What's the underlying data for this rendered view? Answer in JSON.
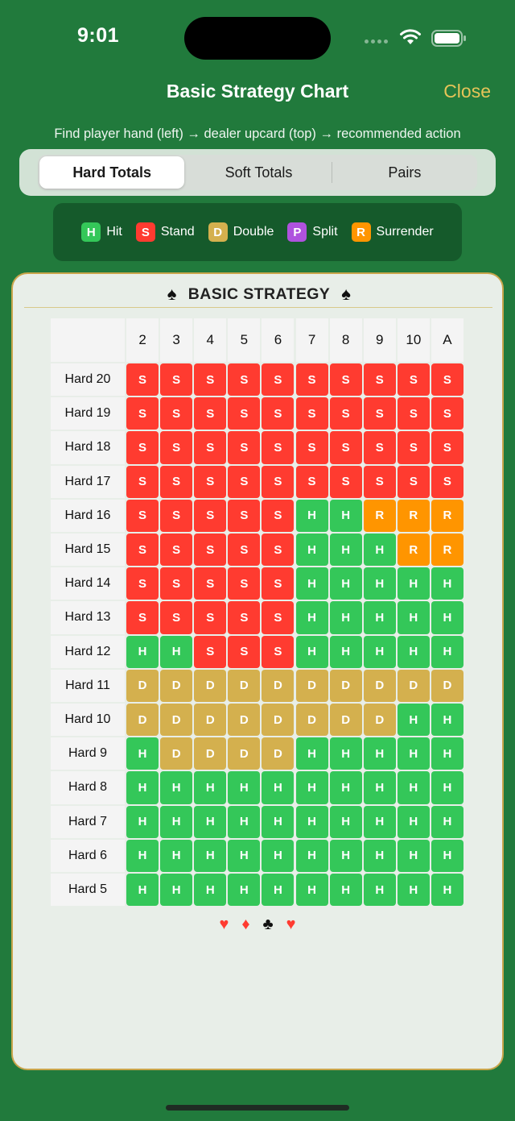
{
  "status_bar": {
    "time": "9:01"
  },
  "nav": {
    "title": "Basic Strategy Chart",
    "close_label": "Close",
    "instructions": "Find player hand (left) → dealer upcard (top) → recommended action"
  },
  "tabs": [
    {
      "label": "Hard Totals",
      "active": true
    },
    {
      "label": "Soft Totals",
      "active": false
    },
    {
      "label": "Pairs",
      "active": false
    }
  ],
  "legend": [
    {
      "code": "H",
      "label": "Hit",
      "color": "#34c759"
    },
    {
      "code": "S",
      "label": "Stand",
      "color": "#ff3b30"
    },
    {
      "code": "D",
      "label": "Double",
      "color": "#d4b04e"
    },
    {
      "code": "P",
      "label": "Split",
      "color": "#af52de"
    },
    {
      "code": "R",
      "label": "Surrender",
      "color": "#ff9500"
    }
  ],
  "card": {
    "title": "BASIC STRATEGY",
    "title_suit_icon": "spade-icon",
    "footer_suits": [
      {
        "glyph": "♥",
        "color": "#ff3b30",
        "icon": "heart-icon"
      },
      {
        "glyph": "♦",
        "color": "#ff3b30",
        "icon": "diamond-icon"
      },
      {
        "glyph": "♣",
        "color": "#111111",
        "icon": "club-icon"
      },
      {
        "glyph": "♥",
        "color": "#ff3b30",
        "icon": "heart-icon"
      }
    ]
  },
  "table": {
    "dealer_upcards": [
      "2",
      "3",
      "4",
      "5",
      "6",
      "7",
      "8",
      "9",
      "10",
      "A"
    ],
    "rows": [
      {
        "label": "Hard 20",
        "actions": [
          "S",
          "S",
          "S",
          "S",
          "S",
          "S",
          "S",
          "S",
          "S",
          "S"
        ]
      },
      {
        "label": "Hard 19",
        "actions": [
          "S",
          "S",
          "S",
          "S",
          "S",
          "S",
          "S",
          "S",
          "S",
          "S"
        ]
      },
      {
        "label": "Hard 18",
        "actions": [
          "S",
          "S",
          "S",
          "S",
          "S",
          "S",
          "S",
          "S",
          "S",
          "S"
        ]
      },
      {
        "label": "Hard 17",
        "actions": [
          "S",
          "S",
          "S",
          "S",
          "S",
          "S",
          "S",
          "S",
          "S",
          "S"
        ]
      },
      {
        "label": "Hard 16",
        "actions": [
          "S",
          "S",
          "S",
          "S",
          "S",
          "H",
          "H",
          "R",
          "R",
          "R"
        ]
      },
      {
        "label": "Hard 15",
        "actions": [
          "S",
          "S",
          "S",
          "S",
          "S",
          "H",
          "H",
          "H",
          "R",
          "R"
        ]
      },
      {
        "label": "Hard 14",
        "actions": [
          "S",
          "S",
          "S",
          "S",
          "S",
          "H",
          "H",
          "H",
          "H",
          "H"
        ]
      },
      {
        "label": "Hard 13",
        "actions": [
          "S",
          "S",
          "S",
          "S",
          "S",
          "H",
          "H",
          "H",
          "H",
          "H"
        ]
      },
      {
        "label": "Hard 12",
        "actions": [
          "H",
          "H",
          "S",
          "S",
          "S",
          "H",
          "H",
          "H",
          "H",
          "H"
        ]
      },
      {
        "label": "Hard 11",
        "actions": [
          "D",
          "D",
          "D",
          "D",
          "D",
          "D",
          "D",
          "D",
          "D",
          "D"
        ]
      },
      {
        "label": "Hard 10",
        "actions": [
          "D",
          "D",
          "D",
          "D",
          "D",
          "D",
          "D",
          "D",
          "H",
          "H"
        ]
      },
      {
        "label": "Hard 9",
        "actions": [
          "H",
          "D",
          "D",
          "D",
          "D",
          "H",
          "H",
          "H",
          "H",
          "H"
        ]
      },
      {
        "label": "Hard 8",
        "actions": [
          "H",
          "H",
          "H",
          "H",
          "H",
          "H",
          "H",
          "H",
          "H",
          "H"
        ]
      },
      {
        "label": "Hard 7",
        "actions": [
          "H",
          "H",
          "H",
          "H",
          "H",
          "H",
          "H",
          "H",
          "H",
          "H"
        ]
      },
      {
        "label": "Hard 6",
        "actions": [
          "H",
          "H",
          "H",
          "H",
          "H",
          "H",
          "H",
          "H",
          "H",
          "H"
        ]
      },
      {
        "label": "Hard 5",
        "actions": [
          "H",
          "H",
          "H",
          "H",
          "H",
          "H",
          "H",
          "H",
          "H",
          "H"
        ]
      }
    ]
  }
}
